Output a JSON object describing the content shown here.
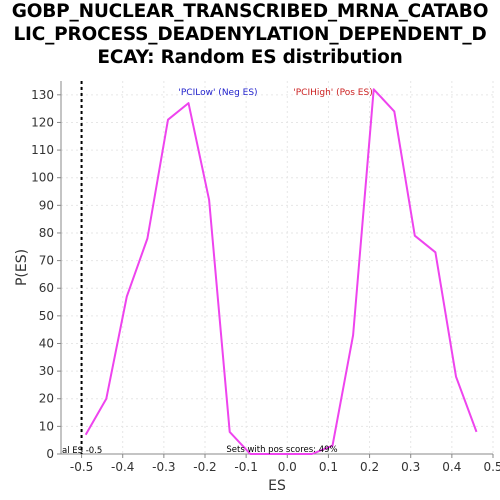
{
  "chart_data": {
    "type": "line",
    "title_lines": [
      "GOBP_NUCLEAR_TRANSCRIBED_MRNA_CATABO",
      "LIC_PROCESS_DEADENYLATION_DEPENDENT_D",
      "ECAY: Random ES distribution"
    ],
    "xlabel": "ES",
    "ylabel": "P(ES)",
    "xlim": [
      -0.55,
      0.5
    ],
    "ylim": [
      0,
      135
    ],
    "xticks": [
      -0.5,
      -0.4,
      -0.3,
      -0.2,
      -0.1,
      0.0,
      0.1,
      0.2,
      0.3,
      0.4,
      0.5
    ],
    "xtick_labels": [
      "-0.5",
      "-0.4",
      "-0.3",
      "-0.2",
      "-0.1",
      "0.0",
      "0.1",
      "0.2",
      "0.3",
      "0.4",
      "0.5"
    ],
    "yticks": [
      0,
      10,
      20,
      30,
      40,
      50,
      60,
      70,
      80,
      90,
      100,
      110,
      120,
      130
    ],
    "grid": true,
    "series": [
      {
        "color": "#ee44ee",
        "x": [
          -0.49,
          -0.44,
          -0.39,
          -0.34,
          -0.29,
          -0.24,
          -0.19,
          -0.14,
          -0.09,
          -0.04,
          0.01,
          0.06,
          0.11,
          0.16,
          0.21,
          0.26,
          0.31,
          0.36,
          0.41,
          0.46
        ],
        "y": [
          7,
          20,
          57,
          78,
          121,
          127,
          92,
          8,
          0,
          0,
          0,
          0,
          3,
          43,
          132,
          124,
          79,
          73,
          28,
          8
        ]
      }
    ],
    "actual_es": -0.5,
    "legend": {
      "neg_label": "'PCILow' (Neg ES)",
      "neg_color": "#2222cc",
      "pos_label": "'PCIHigh' (Pos ES)",
      "pos_color": "#cc2222"
    },
    "annotations": {
      "actual_es_text": "al ES -0.5",
      "pos_scores_text": "Sets with pos scores: 49%"
    }
  }
}
